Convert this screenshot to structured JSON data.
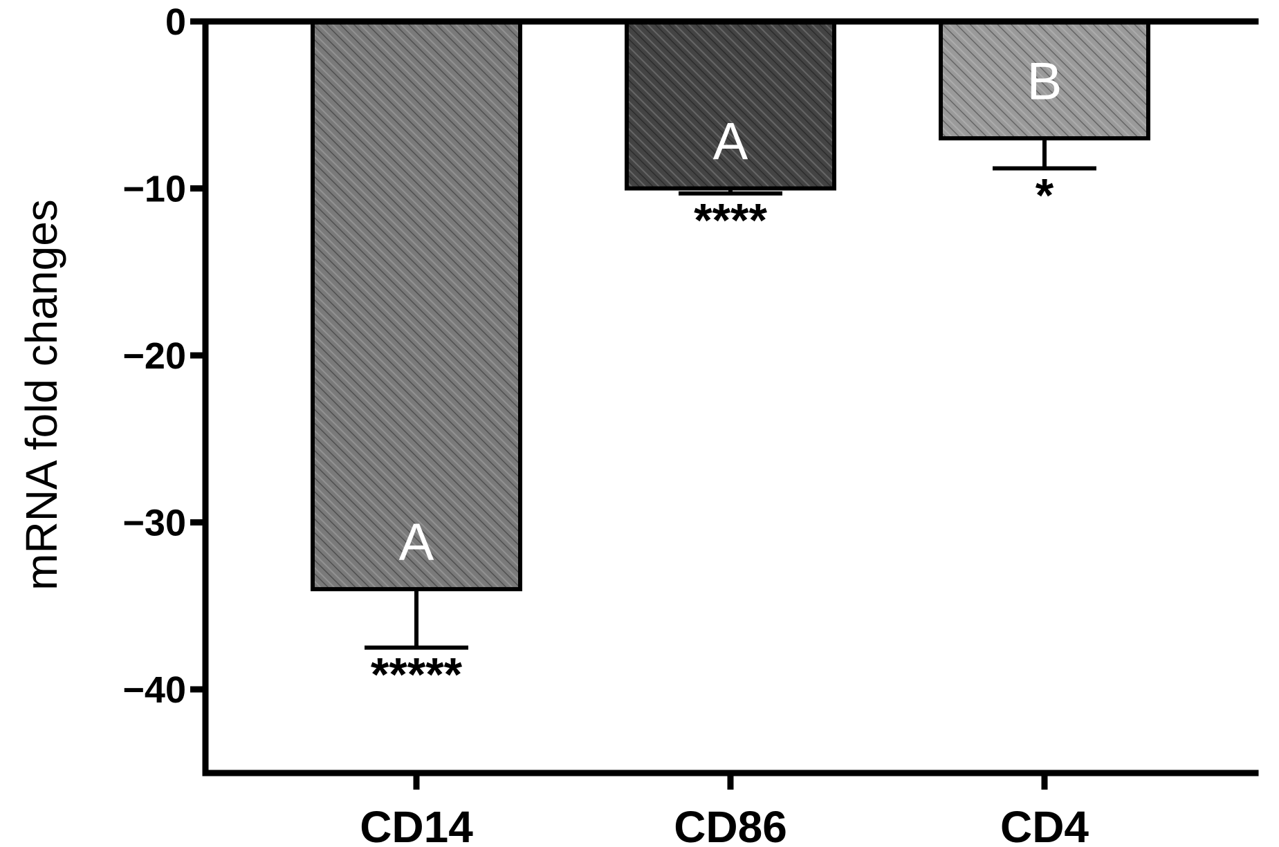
{
  "chart_data": {
    "type": "bar",
    "title": "",
    "xlabel": "",
    "ylabel": "mRNA fold changes",
    "ylim": [
      -45,
      0
    ],
    "yticks": [
      0,
      -10,
      -20,
      -30,
      -40
    ],
    "ytick_labels": [
      "0",
      "−10",
      "−20",
      "−30",
      "−40"
    ],
    "categories": [
      "CD14",
      "CD86",
      "CD4"
    ],
    "values": [
      -34,
      -10,
      -7
    ],
    "error": [
      3.5,
      0.3,
      1.8
    ],
    "group_letters": [
      "A",
      "A",
      "B"
    ],
    "significance": [
      "*****",
      "****",
      "*"
    ],
    "colors": [
      "#7a7a7a",
      "#444444",
      "#9a9a9a"
    ],
    "grid": false,
    "legend": "none"
  }
}
